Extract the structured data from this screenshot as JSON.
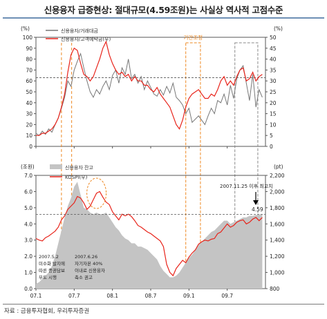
{
  "title": "신용융자 급증현상: 절대규모(4.59조원)는 사실상 역사적 고점수준",
  "source": "자료 : 금융투자협회, 우리투자증권",
  "colors": {
    "red": "#e8231a",
    "gray": "#777777",
    "area": "#c4c4c4",
    "orange": "#ee8822",
    "boxGray": "#888888"
  },
  "chart_data": [
    {
      "type": "line",
      "panel": "top",
      "left_unit": "(%)",
      "right_unit": "(%)",
      "xticks": [
        "07.1",
        "07.7",
        "08.1",
        "08.7",
        "09.1",
        "09.7"
      ],
      "yticks_left": [
        0,
        10,
        20,
        30,
        40,
        50,
        60,
        70,
        80,
        90,
        100
      ],
      "yticks_right": [
        0,
        5,
        10,
        15,
        20,
        25,
        30,
        35,
        40,
        45,
        50
      ],
      "ylim_left": [
        0,
        100
      ],
      "ylim_right": [
        0,
        50
      ],
      "annotation_box_label": "기간조정",
      "reference_line_left": 63,
      "series": [
        {
          "name": "신용융자/거래대금",
          "axis": "left",
          "color": "#777777",
          "x": [
            0,
            0.5,
            1,
            1.5,
            2,
            2.5,
            3,
            3.5,
            4,
            4.5,
            5,
            5.5,
            6,
            6.5,
            7,
            7.5,
            8,
            8.5,
            9,
            9.5,
            10,
            10.5,
            11,
            11.5,
            12,
            12.5,
            13,
            13.5,
            14,
            14.5,
            15,
            15.5,
            16,
            16.5,
            17,
            17.5,
            18,
            18.5,
            19,
            19.5,
            20,
            20.5,
            21,
            21.5,
            22,
            22.5,
            23,
            23.5,
            24,
            24.5,
            25,
            25.5,
            26,
            26.5,
            27,
            27.5,
            28,
            28.5,
            29,
            29.5,
            30,
            30.5,
            31,
            31.5,
            32,
            32.5,
            33,
            33.5,
            34,
            34.5,
            35,
            35.5
          ],
          "values": [
            12,
            10,
            14,
            11,
            16,
            13,
            20,
            26,
            35,
            45,
            60,
            55,
            70,
            78,
            85,
            72,
            60,
            50,
            45,
            52,
            48,
            55,
            60,
            52,
            65,
            70,
            58,
            72,
            66,
            80,
            62,
            66,
            58,
            64,
            52,
            60,
            54,
            48,
            46,
            52,
            47,
            55,
            49,
            58,
            45,
            42,
            38,
            30,
            35,
            22,
            25,
            28,
            24,
            20,
            28,
            35,
            30,
            42,
            40,
            48,
            38,
            56,
            44,
            62,
            70,
            74,
            58,
            42,
            66,
            36,
            52,
            45
          ]
        },
        {
          "name": "신용융자/고객예탁금(우)",
          "axis": "right",
          "color": "#e8231a",
          "x": [
            0,
            0.5,
            1,
            1.5,
            2,
            2.5,
            3,
            3.5,
            4,
            4.5,
            5,
            5.5,
            6,
            6.5,
            7,
            7.5,
            8,
            8.5,
            9,
            9.5,
            10,
            10.5,
            11,
            11.5,
            12,
            12.5,
            13,
            13.5,
            14,
            14.5,
            15,
            15.5,
            16,
            16.5,
            17,
            17.5,
            18,
            18.5,
            19,
            19.5,
            20,
            20.5,
            21,
            21.5,
            22,
            22.5,
            23,
            23.5,
            24,
            24.5,
            25,
            25.5,
            26,
            26.5,
            27,
            27.5,
            28,
            28.5,
            29,
            29.5,
            30,
            30.5,
            31,
            31.5,
            32,
            32.5,
            33,
            33.5,
            34,
            34.5,
            35,
            35.5
          ],
          "values": [
            5,
            5,
            6,
            6,
            7,
            8,
            10,
            13,
            18,
            24,
            34,
            42,
            45,
            44,
            38,
            33,
            32,
            30,
            32,
            36,
            40,
            45,
            48,
            42,
            38,
            35,
            33,
            34,
            32,
            33,
            30,
            32,
            30,
            30,
            28,
            28,
            26,
            25,
            27,
            24,
            22,
            20,
            18,
            14,
            10,
            8,
            12,
            18,
            22,
            24,
            25,
            26,
            24,
            22,
            22,
            24,
            23,
            26,
            30,
            32,
            28,
            30,
            28,
            32,
            35,
            36,
            30,
            31,
            34,
            30,
            32,
            33
          ]
        }
      ]
    },
    {
      "type": "area",
      "panel": "bottom",
      "left_unit": "(조원)",
      "right_unit": "(pt)",
      "xticks": [
        "07.1",
        "07.7",
        "08.1",
        "08.7",
        "09.1",
        "09.7"
      ],
      "yticks_left": [
        0.0,
        1.0,
        2.0,
        3.0,
        4.0,
        5.0,
        6.0,
        7.0
      ],
      "yticks_right": [
        800,
        1000,
        1200,
        1400,
        1600,
        1800,
        2000,
        2200
      ],
      "ylim_left": [
        0,
        7
      ],
      "ylim_right": [
        800,
        2200
      ],
      "reference_line_left": 4.59,
      "series": [
        {
          "name": "신용융자 잔고",
          "axis": "left",
          "type": "area",
          "color": "#c4c4c4",
          "x": [
            0,
            0.5,
            1,
            1.5,
            2,
            2.5,
            3,
            3.5,
            4,
            4.5,
            5,
            5.5,
            6,
            6.5,
            7,
            7.5,
            8,
            8.5,
            9,
            9.5,
            10,
            10.5,
            11,
            11.5,
            12,
            12.5,
            13,
            13.5,
            14,
            14.5,
            15,
            15.5,
            16,
            16.5,
            17,
            17.5,
            18,
            18.5,
            19,
            19.5,
            20,
            20.5,
            21,
            21.5,
            22,
            22.5,
            23,
            23.5,
            24,
            24.5,
            25,
            25.5,
            26,
            26.5,
            27,
            27.5,
            28,
            28.5,
            29,
            29.5,
            30,
            30.5,
            31,
            31.5,
            32,
            32.5,
            33,
            33.5,
            34,
            34.5,
            35,
            35.5
          ],
          "values": [
            0.3,
            0.4,
            0.6,
            0.8,
            1.0,
            1.4,
            2.0,
            2.8,
            3.6,
            4.4,
            5.1,
            5.6,
            6.3,
            6.6,
            5.8,
            5.0,
            4.9,
            4.7,
            4.6,
            4.7,
            4.6,
            4.6,
            4.7,
            4.4,
            4.1,
            3.8,
            3.6,
            3.3,
            3.1,
            3.0,
            2.8,
            2.8,
            2.6,
            2.6,
            2.5,
            2.4,
            2.2,
            2.0,
            1.8,
            1.4,
            1.1,
            0.9,
            0.7,
            0.7,
            0.8,
            1.0,
            1.3,
            1.6,
            1.9,
            2.1,
            2.4,
            2.7,
            2.9,
            3.1,
            3.3,
            3.5,
            3.6,
            3.8,
            4.0,
            4.2,
            4.2,
            4.0,
            4.1,
            4.2,
            4.3,
            4.4,
            4.4,
            4.5,
            4.5,
            4.55,
            4.58,
            4.59
          ]
        },
        {
          "name": "KOSPI(우)",
          "axis": "right",
          "color": "#e8231a",
          "x": [
            0,
            0.5,
            1,
            1.5,
            2,
            2.5,
            3,
            3.5,
            4,
            4.5,
            5,
            5.5,
            6,
            6.5,
            7,
            7.5,
            8,
            8.5,
            9,
            9.5,
            10,
            10.5,
            11,
            11.5,
            12,
            12.5,
            13,
            13.5,
            14,
            14.5,
            15,
            15.5,
            16,
            16.5,
            17,
            17.5,
            18,
            18.5,
            19,
            19.5,
            20,
            20.5,
            21,
            21.5,
            22,
            22.5,
            23,
            23.5,
            24,
            24.5,
            25,
            25.5,
            26,
            26.5,
            27,
            27.5,
            28,
            28.5,
            29,
            29.5,
            30,
            30.5,
            31,
            31.5,
            32,
            32.5,
            33,
            33.5,
            34,
            34.5,
            35,
            35.5
          ],
          "values": [
            1420,
            1400,
            1390,
            1430,
            1450,
            1480,
            1510,
            1560,
            1650,
            1700,
            1780,
            1820,
            1860,
            1940,
            1920,
            1860,
            1780,
            1820,
            1900,
            1980,
            2000,
            1930,
            1870,
            1840,
            1750,
            1700,
            1650,
            1720,
            1700,
            1720,
            1690,
            1640,
            1580,
            1560,
            1530,
            1500,
            1480,
            1450,
            1420,
            1390,
            1320,
            1100,
            1000,
            960,
            1050,
            1100,
            1150,
            1120,
            1190,
            1240,
            1280,
            1350,
            1380,
            1400,
            1390,
            1410,
            1420,
            1480,
            1500,
            1550,
            1600,
            1560,
            1580,
            1620,
            1640,
            1650,
            1600,
            1620,
            1660,
            1680,
            1640,
            1680
          ]
        }
      ],
      "annotations": {
        "latest_date": "2007.11.25 이후 최고치",
        "latest_value": "4.59",
        "note1": [
          "2007.5.2",
          "미수화 발지에",
          "따른 증권담보",
          "부도 시행"
        ],
        "note2": [
          "2007.6.26",
          "자기자본 40%",
          "이내로 신용융자",
          "축소 권고"
        ]
      }
    }
  ]
}
